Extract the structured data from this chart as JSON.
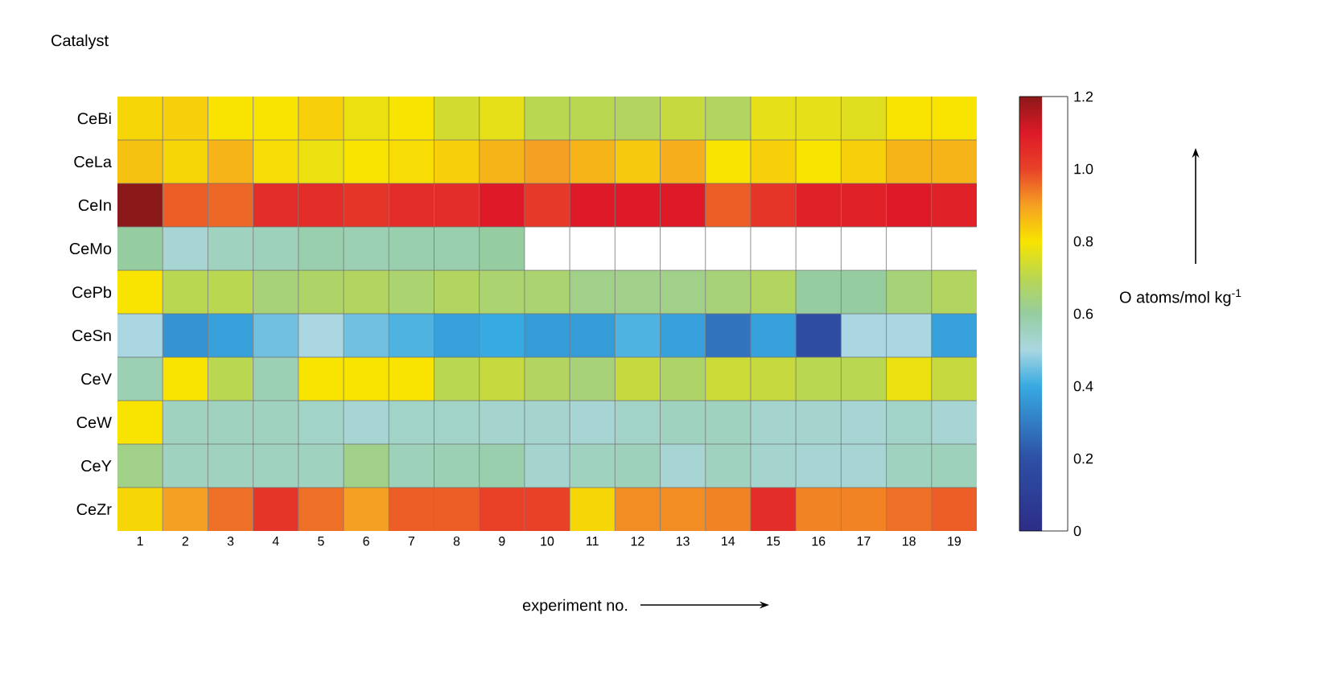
{
  "chart_data": {
    "type": "heatmap",
    "ylabel": "Catalyst",
    "xlabel": "experiment no.",
    "clabel": "O atoms/mol kg$^{-1}$",
    "categories": [
      "1",
      "2",
      "3",
      "4",
      "5",
      "6",
      "7",
      "8",
      "9",
      "10",
      "11",
      "12",
      "13",
      "14",
      "15",
      "16",
      "17",
      "18",
      "19"
    ],
    "y_categories": [
      "CeBi",
      "CeLa",
      "CeIn",
      "CeMo",
      "CePb",
      "CeSn",
      "CeV",
      "CeW",
      "CeY",
      "CeZr"
    ],
    "cells": [
      [
        0.82,
        0.83,
        0.8,
        0.8,
        0.83,
        0.78,
        0.8,
        0.74,
        0.77,
        0.7,
        0.7,
        0.68,
        0.72,
        0.68,
        0.77,
        0.77,
        0.76,
        0.8,
        0.8
      ],
      [
        0.85,
        0.82,
        0.87,
        0.81,
        0.78,
        0.8,
        0.81,
        0.83,
        0.87,
        0.9,
        0.87,
        0.84,
        0.88,
        0.8,
        0.83,
        0.8,
        0.83,
        0.87,
        0.87
      ],
      [
        1.2,
        0.97,
        0.96,
        1.05,
        1.05,
        1.03,
        1.05,
        1.05,
        1.1,
        1.02,
        1.1,
        1.1,
        1.1,
        0.97,
        1.03,
        1.08,
        1.08,
        1.1,
        1.08
      ],
      [
        0.6,
        0.52,
        0.55,
        0.56,
        0.58,
        0.57,
        0.58,
        0.58,
        0.6,
        null,
        null,
        null,
        null,
        null,
        null,
        null,
        null,
        null,
        null
      ],
      [
        0.8,
        0.7,
        0.7,
        0.65,
        0.67,
        0.68,
        0.66,
        0.68,
        0.66,
        0.66,
        0.63,
        0.63,
        0.63,
        0.65,
        0.68,
        0.6,
        0.6,
        0.65,
        0.68
      ],
      [
        0.5,
        0.35,
        0.38,
        0.45,
        0.5,
        0.45,
        0.42,
        0.38,
        0.4,
        0.37,
        0.37,
        0.42,
        0.38,
        0.28,
        0.38,
        0.18,
        0.5,
        0.5,
        0.38
      ],
      [
        0.57,
        0.8,
        0.7,
        0.57,
        0.8,
        0.8,
        0.8,
        0.7,
        0.72,
        0.68,
        0.65,
        0.72,
        0.67,
        0.73,
        0.72,
        0.7,
        0.7,
        0.78,
        0.72
      ],
      [
        0.8,
        0.55,
        0.55,
        0.55,
        0.54,
        0.52,
        0.54,
        0.54,
        0.53,
        0.53,
        0.52,
        0.54,
        0.55,
        0.55,
        0.53,
        0.53,
        0.52,
        0.54,
        0.52
      ],
      [
        0.63,
        0.55,
        0.55,
        0.55,
        0.55,
        0.63,
        0.56,
        0.57,
        0.58,
        0.53,
        0.55,
        0.56,
        0.52,
        0.55,
        0.53,
        0.52,
        0.52,
        0.55,
        0.56
      ],
      [
        0.82,
        0.9,
        0.95,
        1.03,
        0.95,
        0.9,
        0.97,
        0.97,
        1.0,
        1.0,
        0.82,
        0.92,
        0.92,
        0.93,
        1.05,
        0.93,
        0.93,
        0.95,
        0.97
      ]
    ],
    "clim": [
      0,
      1.2
    ],
    "cticks": [
      0,
      0.2,
      0.4,
      0.6,
      0.8,
      {
        "value": 1,
        "label": "1.0"
      },
      1.2
    ]
  }
}
